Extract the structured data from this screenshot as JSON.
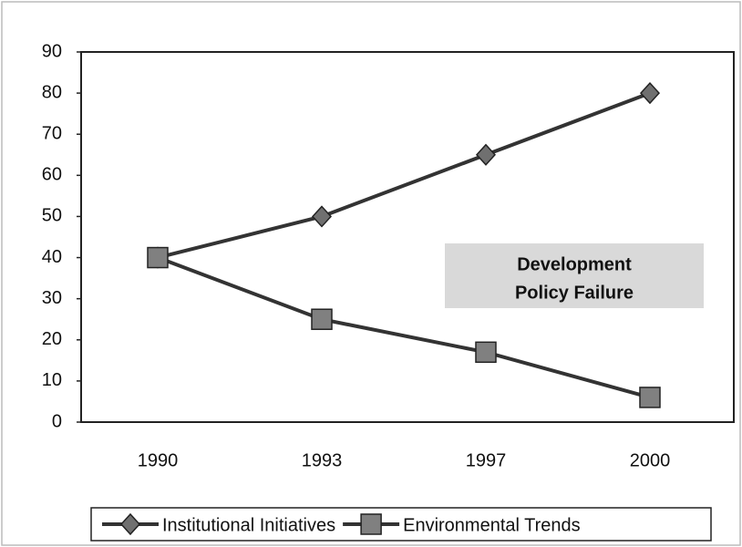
{
  "chart_data": {
    "type": "line",
    "categories": [
      "1990",
      "1993",
      "1997",
      "2000"
    ],
    "series": [
      {
        "name": "Institutional Initiatives",
        "color": "#333333",
        "marker": "diamond",
        "values": [
          40,
          50,
          65,
          80
        ]
      },
      {
        "name": "Environmental Trends",
        "color": "#333333",
        "marker": "square",
        "values": [
          40,
          25,
          17,
          6
        ]
      }
    ],
    "ylim": [
      0,
      90
    ],
    "yticks": [
      0,
      10,
      20,
      30,
      40,
      50,
      60,
      70,
      80,
      90
    ],
    "annotation": [
      "Development",
      "Policy Failure"
    ],
    "legend": "bottom"
  }
}
